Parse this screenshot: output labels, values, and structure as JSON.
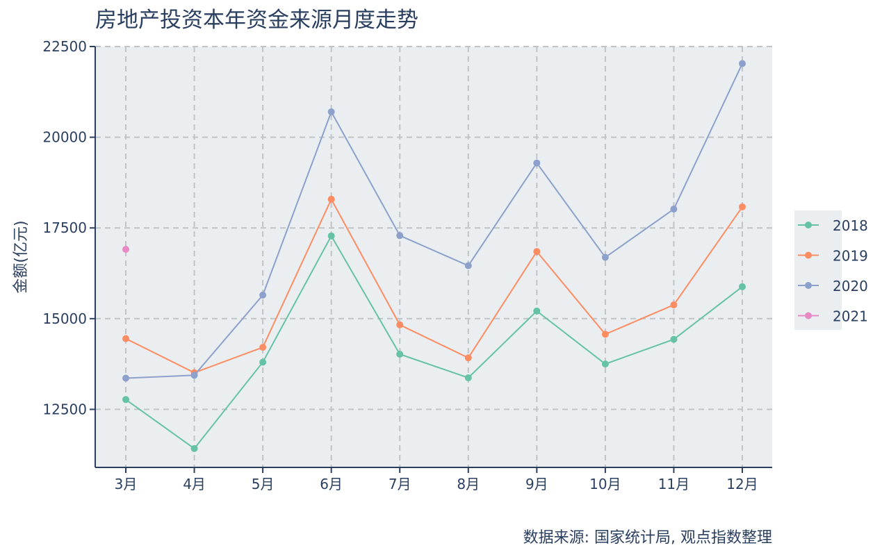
{
  "chart_data": {
    "type": "line",
    "title": "房地产投资本年资金来源月度走势",
    "xlabel": "",
    "ylabel": "金额(亿元)",
    "categories": [
      "3月",
      "4月",
      "5月",
      "6月",
      "7月",
      "8月",
      "9月",
      "10月",
      "11月",
      "12月"
    ],
    "ylim": [
      10900,
      22500
    ],
    "yticks": [
      12500,
      15000,
      17500,
      20000,
      22500
    ],
    "grid": true,
    "legend_position": "right",
    "series": [
      {
        "name": "2018",
        "color": "#66c2a5",
        "values": [
          12770,
          11420,
          13800,
          17280,
          14020,
          13370,
          15210,
          13750,
          14430,
          15880
        ]
      },
      {
        "name": "2019",
        "color": "#fc8d62",
        "values": [
          14450,
          13510,
          14210,
          18290,
          14830,
          13920,
          16850,
          14570,
          15380,
          18080
        ]
      },
      {
        "name": "2020",
        "color": "#8da0cb",
        "values": [
          13360,
          13440,
          15650,
          20700,
          17290,
          16460,
          19290,
          16690,
          18020,
          22030
        ]
      },
      {
        "name": "2021",
        "color": "#e78ac3",
        "values": [
          16910,
          null,
          null,
          null,
          null,
          null,
          null,
          null,
          null,
          null
        ]
      }
    ],
    "source_note": "数据来源: 国家统计局, 观点指数整理"
  },
  "colors": {
    "plot_bg": "#eaeef0",
    "axis": "#2a3f5f",
    "grid": "#c0c4c6"
  }
}
